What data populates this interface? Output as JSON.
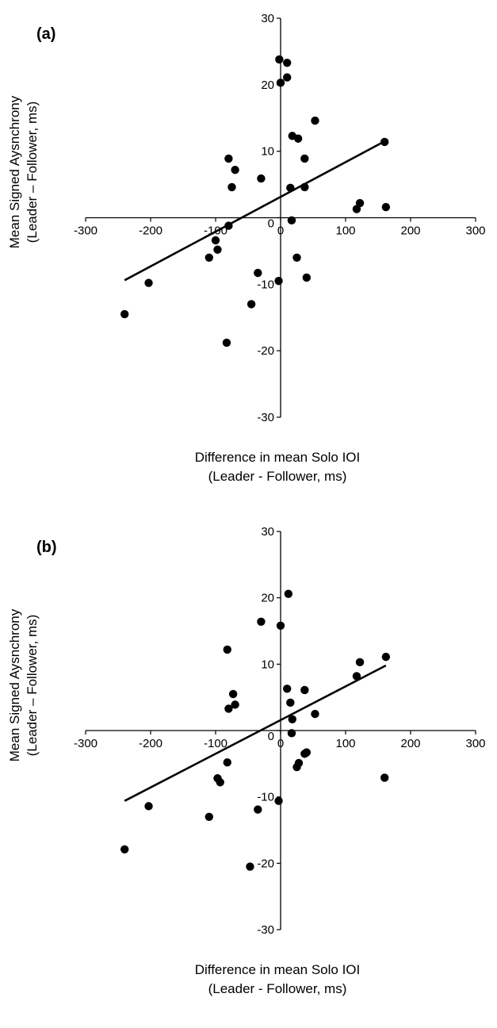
{
  "chart_data": [
    {
      "type": "scatter",
      "panel_label": "(a)",
      "xlabel_line1": "Difference in mean Solo IOI",
      "xlabel_line2": "(Leader - Follower, ms)",
      "ylabel_line1": "Mean Signed Aysnchrony",
      "ylabel_line2": "(Leader – Follower, ms)",
      "xlim": [
        -300,
        300
      ],
      "ylim": [
        -30,
        30
      ],
      "x_ticks": [
        -300,
        -200,
        -100,
        0,
        100,
        200,
        300
      ],
      "y_ticks": [
        -30,
        -20,
        -10,
        0,
        10,
        20,
        30
      ],
      "grid": false,
      "legend": "none",
      "point_color": "#000000",
      "points": [
        [
          -2,
          23.8
        ],
        [
          10,
          23.3
        ],
        [
          0,
          20.3
        ],
        [
          10,
          21.1
        ],
        [
          53,
          14.6
        ],
        [
          18,
          12.3
        ],
        [
          27,
          11.9
        ],
        [
          160,
          11.4
        ],
        [
          -80,
          8.9
        ],
        [
          37,
          8.9
        ],
        [
          -70,
          7.2
        ],
        [
          -30,
          5.9
        ],
        [
          -75,
          4.6
        ],
        [
          15,
          4.5
        ],
        [
          37,
          4.6
        ],
        [
          122,
          2.2
        ],
        [
          117,
          1.3
        ],
        [
          162,
          1.6
        ],
        [
          17,
          -0.4
        ],
        [
          -80,
          -1.2
        ],
        [
          -100,
          -3.4
        ],
        [
          -97,
          -4.8
        ],
        [
          -110,
          -6.0
        ],
        [
          25,
          -6.0
        ],
        [
          -203,
          -9.8
        ],
        [
          -3,
          -9.5
        ],
        [
          40,
          -9.0
        ],
        [
          -35,
          -8.3
        ],
        [
          -45,
          -13.0
        ],
        [
          -240,
          -14.5
        ],
        [
          -83,
          -18.8
        ]
      ],
      "trendline": {
        "x": [
          -240,
          162
        ],
        "y": [
          -9.4,
          11.6
        ]
      }
    },
    {
      "type": "scatter",
      "panel_label": "(b)",
      "xlabel_line1": "Difference in mean Solo IOI",
      "xlabel_line2": "(Leader - Follower, ms)",
      "ylabel_line1": "Mean Signed Aysnchrony",
      "ylabel_line2": "(Leader – Follower, ms)",
      "xlim": [
        -300,
        300
      ],
      "ylim": [
        -30,
        30
      ],
      "x_ticks": [
        -300,
        -200,
        -100,
        0,
        100,
        200,
        300
      ],
      "y_ticks": [
        -30,
        -20,
        -10,
        0,
        10,
        20,
        30
      ],
      "grid": false,
      "legend": "none",
      "point_color": "#000000",
      "points": [
        [
          12,
          20.6
        ],
        [
          -30,
          16.4
        ],
        [
          0,
          15.8
        ],
        [
          -82,
          12.2
        ],
        [
          162,
          11.1
        ],
        [
          122,
          10.3
        ],
        [
          117,
          8.2
        ],
        [
          10,
          6.3
        ],
        [
          37,
          6.1
        ],
        [
          -73,
          5.5
        ],
        [
          -70,
          3.9
        ],
        [
          -80,
          3.3
        ],
        [
          15,
          4.2
        ],
        [
          53,
          2.5
        ],
        [
          18,
          1.7
        ],
        [
          17,
          -0.4
        ],
        [
          -82,
          -4.8
        ],
        [
          40,
          -3.3
        ],
        [
          37,
          -3.5
        ],
        [
          28,
          -4.9
        ],
        [
          25,
          -5.5
        ],
        [
          -97,
          -7.2
        ],
        [
          -93,
          -7.8
        ],
        [
          160,
          -7.1
        ],
        [
          -3,
          -10.6
        ],
        [
          -203,
          -11.4
        ],
        [
          -35,
          -11.9
        ],
        [
          -110,
          -13.0
        ],
        [
          -240,
          -17.9
        ],
        [
          -47,
          -20.5
        ]
      ],
      "trendline": {
        "x": [
          -240,
          162
        ],
        "y": [
          -10.6,
          9.8
        ]
      }
    }
  ]
}
